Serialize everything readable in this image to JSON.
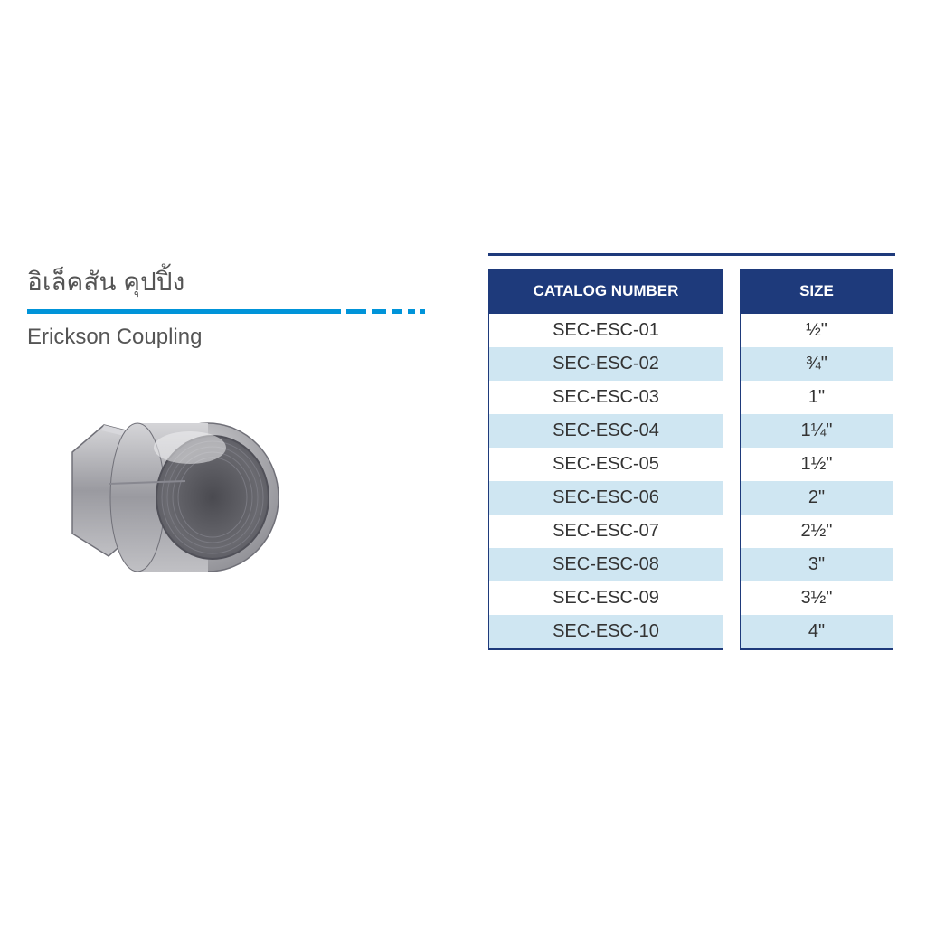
{
  "title": {
    "thai": "อิเล็คสัน คุปปิ้ง",
    "english": "Erickson Coupling"
  },
  "divider": {
    "main_color": "#0094d9",
    "dash_widths": [
      22,
      16,
      12,
      8,
      5
    ]
  },
  "table": {
    "header_bg": "#1e3a7b",
    "header_fg": "#ffffff",
    "row_odd_bg": "#ffffff",
    "row_even_bg": "#cfe6f2",
    "border_color": "#1e3a7b",
    "columns": [
      "CATALOG NUMBER",
      "SIZE"
    ],
    "rows": [
      {
        "catalog": "SEC-ESC-01",
        "size": "½\""
      },
      {
        "catalog": "SEC-ESC-02",
        "size": "¾\""
      },
      {
        "catalog": "SEC-ESC-03",
        "size": "1\""
      },
      {
        "catalog": "SEC-ESC-04",
        "size": "1¼\""
      },
      {
        "catalog": "SEC-ESC-05",
        "size": "1½\""
      },
      {
        "catalog": "SEC-ESC-06",
        "size": "2\""
      },
      {
        "catalog": "SEC-ESC-07",
        "size": "2½\""
      },
      {
        "catalog": "SEC-ESC-08",
        "size": "3\""
      },
      {
        "catalog": "SEC-ESC-09",
        "size": "3½\""
      },
      {
        "catalog": "SEC-ESC-10",
        "size": "4\""
      }
    ]
  }
}
